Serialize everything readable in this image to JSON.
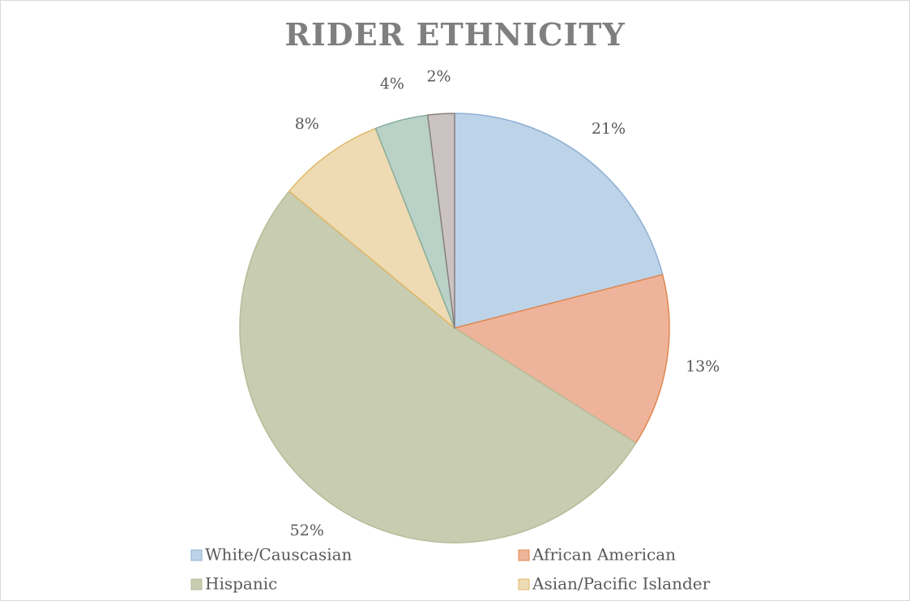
{
  "chart_data": {
    "type": "pie",
    "title": "RIDER ETHNICITY",
    "slices": [
      {
        "name": "White/Causcasian",
        "value": 21,
        "label": "21%",
        "color": "#bdd3e8",
        "stroke": "#8fb0d3"
      },
      {
        "name": "African American",
        "value": 13,
        "label": "13%",
        "color": "#eeb49b",
        "stroke": "#e0874f"
      },
      {
        "name": "Hispanic",
        "value": 52,
        "label": "52%",
        "color": "#c8ccb0",
        "stroke": "#b6bc98"
      },
      {
        "name": "Asian/Pacific Islander",
        "value": 8,
        "label": "8%",
        "color": "#eedbb3",
        "stroke": "#e0b768"
      },
      {
        "name": "",
        "value": 4,
        "label": "4%",
        "color": "#b9d1c6",
        "stroke": "#88ad9d"
      },
      {
        "name": "",
        "value": 2,
        "label": "2%",
        "color": "#cbc2c2",
        "stroke": "#8a8080"
      }
    ],
    "legend": {
      "placement": "bottom",
      "entries": [
        "White/Causcasian",
        "African American",
        "Hispanic",
        "Asian/Pacific Islander"
      ]
    }
  }
}
